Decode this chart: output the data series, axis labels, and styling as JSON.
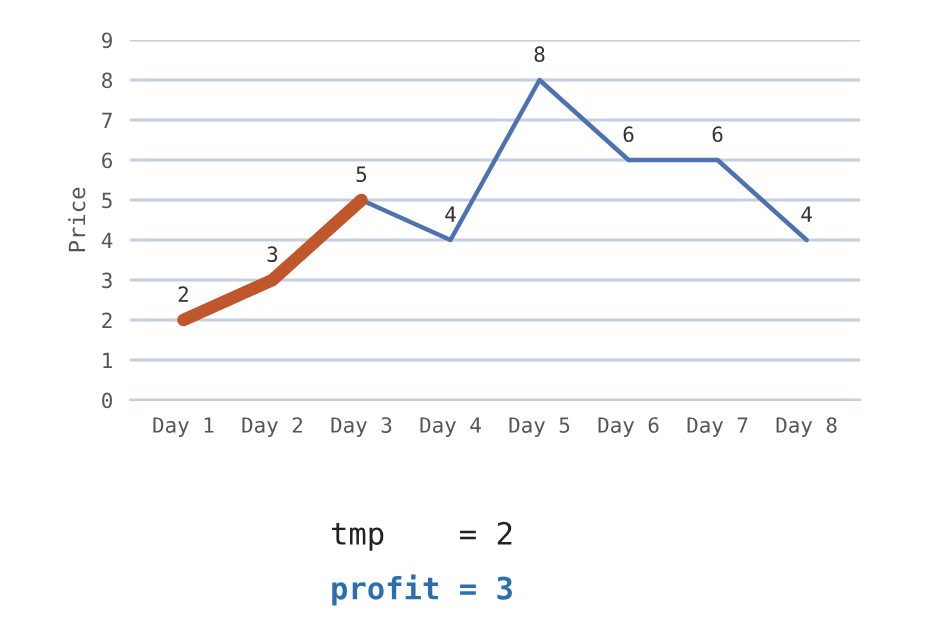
{
  "chart_data": {
    "type": "line",
    "ylabel": "Price",
    "categories": [
      "Day 1",
      "Day 2",
      "Day 3",
      "Day 4",
      "Day 5",
      "Day 6",
      "Day 7",
      "Day 8"
    ],
    "series": [
      {
        "color": "#4c72b0",
        "values": [
          2,
          3,
          5,
          4,
          8,
          6,
          6,
          4
        ],
        "value_labels": [
          "2",
          "3",
          "5",
          "4",
          "8",
          "6",
          "6",
          "4"
        ]
      },
      {
        "color": "#c0562b",
        "values": [
          2,
          3,
          5,
          null,
          null,
          null,
          null,
          null
        ]
      }
    ],
    "ylim": [
      0,
      9
    ],
    "yticks": [
      0,
      1,
      2,
      3,
      4,
      5,
      6,
      7,
      8,
      9
    ],
    "grid": "y",
    "legend": false,
    "marker": "none",
    "line_style": "solid",
    "annotations": [
      "tmp    = 2",
      "profit = 3"
    ]
  }
}
